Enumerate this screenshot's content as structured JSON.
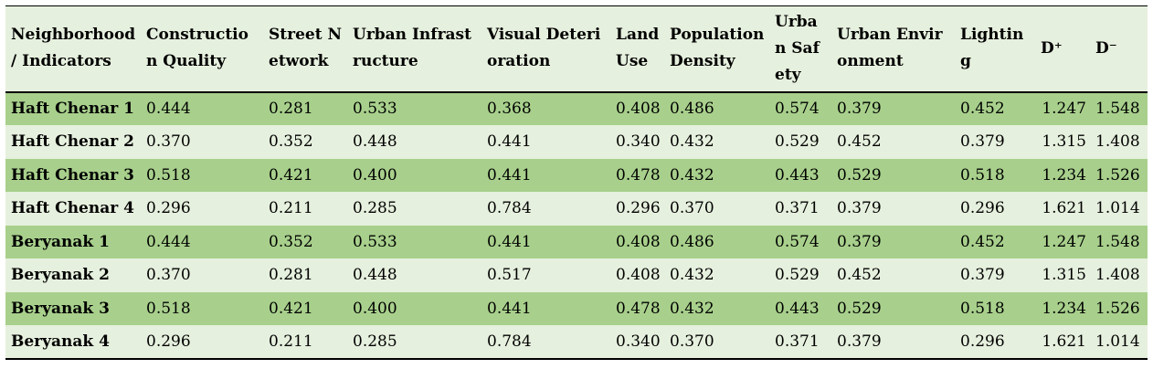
{
  "table": {
    "headers": [
      "Neighborhood / Indicators",
      "Construction Quality",
      "Street Network",
      "Urban Infrastructure",
      "Visual Deterioration",
      "Land Use",
      "Population Density",
      "Urban Safety",
      "Urban Environment",
      "Lighting",
      "D⁺",
      "D⁻"
    ],
    "rows": [
      [
        "Haft Chenar 1",
        "0.444",
        "0.281",
        "0.533",
        "0.368",
        "0.408",
        "0.486",
        "0.574",
        "0.379",
        "0.452",
        "1.247",
        "1.548"
      ],
      [
        "Haft Chenar 2",
        "0.370",
        "0.352",
        "0.448",
        "0.441",
        "0.340",
        "0.432",
        "0.529",
        "0.452",
        "0.379",
        "1.315",
        "1.408"
      ],
      [
        "Haft Chenar 3",
        "0.518",
        "0.421",
        "0.400",
        "0.441",
        "0.478",
        "0.432",
        "0.443",
        "0.529",
        "0.518",
        "1.234",
        "1.526"
      ],
      [
        "Haft Chenar 4",
        "0.296",
        "0.211",
        "0.285",
        "0.784",
        "0.296",
        "0.370",
        "0.371",
        "0.379",
        "0.296",
        "1.621",
        "1.014"
      ],
      [
        "Beryanak 1",
        "0.444",
        "0.352",
        "0.533",
        "0.441",
        "0.408",
        "0.486",
        "0.574",
        "0.379",
        "0.452",
        "1.247",
        "1.548"
      ],
      [
        "Beryanak 2",
        "0.370",
        "0.281",
        "0.448",
        "0.517",
        "0.408",
        "0.432",
        "0.529",
        "0.452",
        "0.379",
        "1.315",
        "1.408"
      ],
      [
        "Beryanak 3",
        "0.518",
        "0.421",
        "0.400",
        "0.441",
        "0.478",
        "0.432",
        "0.443",
        "0.529",
        "0.518",
        "1.234",
        "1.526"
      ],
      [
        "Beryanak 4",
        "0.296",
        "0.211",
        "0.285",
        "0.784",
        "0.340",
        "0.370",
        "0.371",
        "0.379",
        "0.296",
        "1.621",
        "1.014"
      ]
    ]
  },
  "colors": {
    "header_bg": "#e6f0de",
    "row_dark": "#a8d08c",
    "row_light": "#e6f0de"
  }
}
